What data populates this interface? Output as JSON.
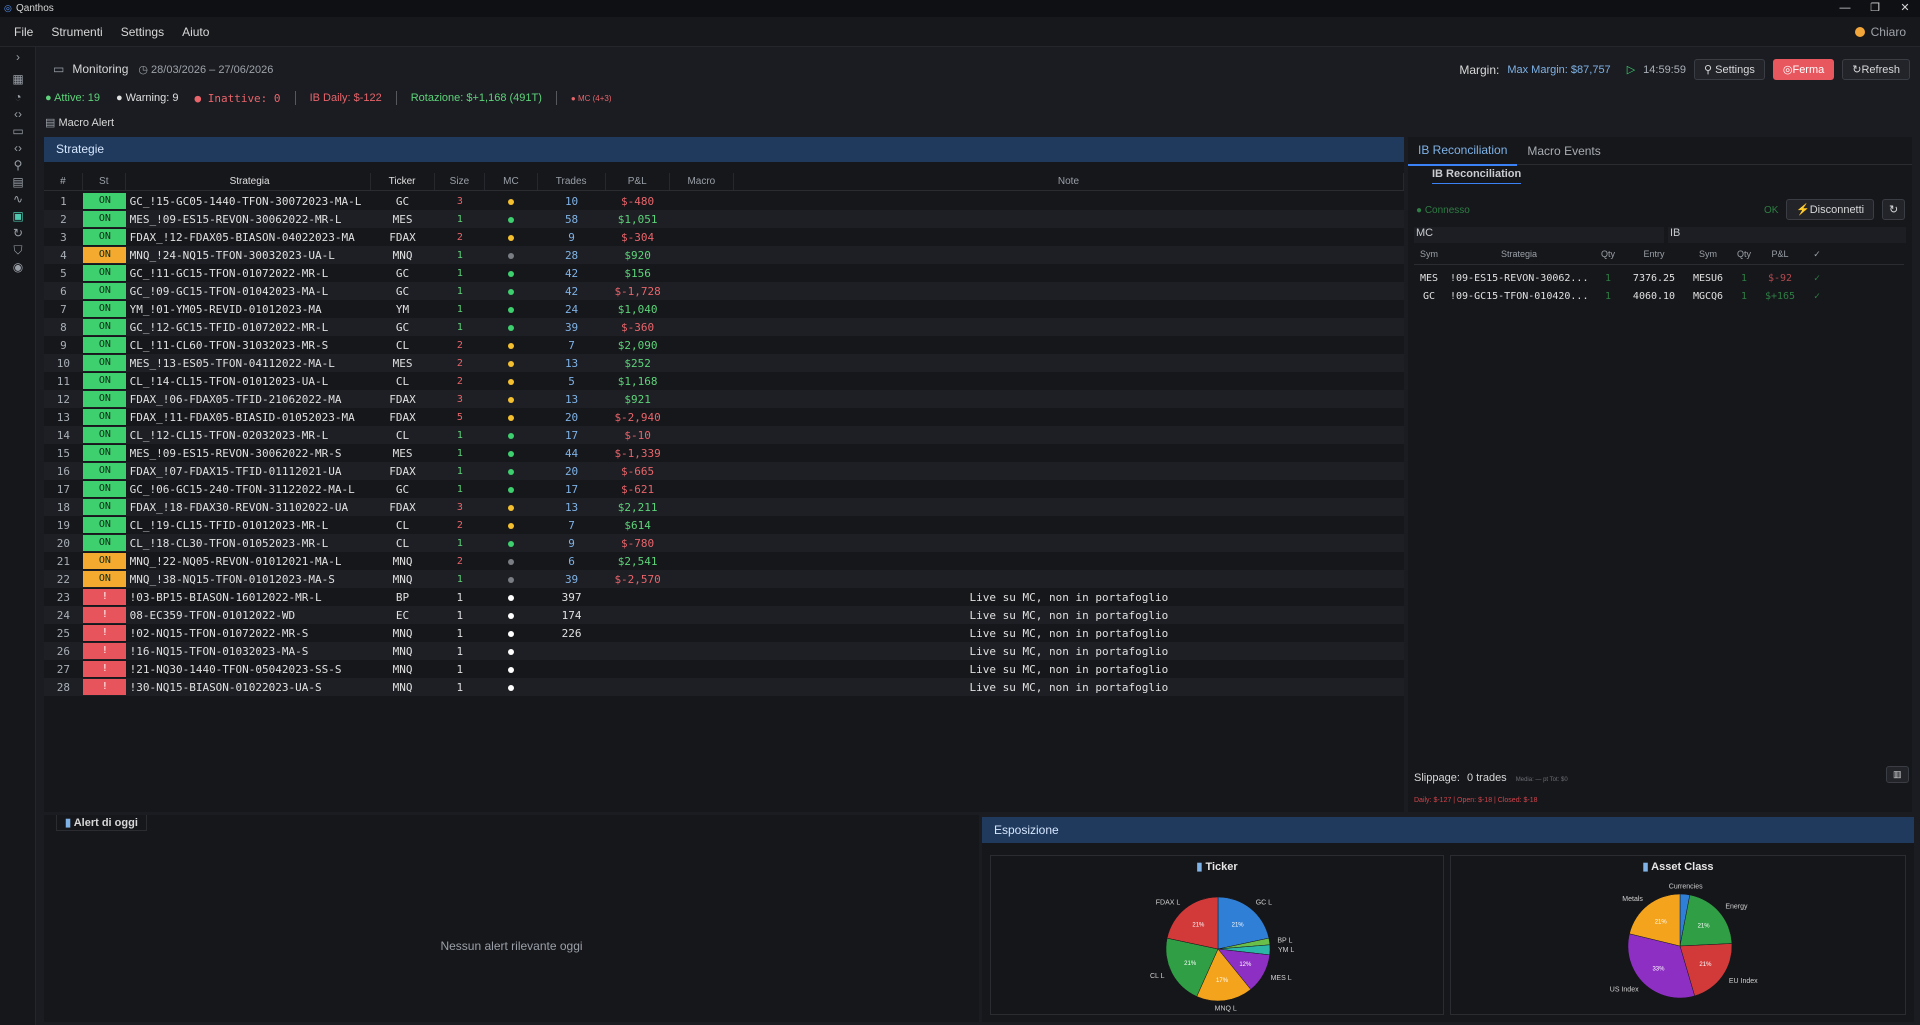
{
  "app": {
    "title": "Qanthos",
    "menu": [
      "File",
      "Strumenti",
      "Settings",
      "Aiuto"
    ],
    "theme": "Chiaro"
  },
  "toolbar": {
    "view": "Monitoring",
    "date_range": "28/03/2026 – 27/06/2026",
    "margin_label": "Margin:",
    "max_margin": "Max Margin: $87,757",
    "time": "14:59:59",
    "settings": "Settings",
    "stop": "Ferma",
    "refresh": "Refresh"
  },
  "status": {
    "active": "Attive: 19",
    "warning": "Warning: 9",
    "inactive": "Inattive: 0",
    "ib_daily": "IB Daily: $-122",
    "rotation": "Rotazione: $+1,168 (491T)",
    "mc": "MC (4+3)",
    "macro_alert": "Macro Alert"
  },
  "strategies": {
    "title": "Strategie",
    "columns": [
      "#",
      "St",
      "Strategia",
      "Ticker",
      "Size",
      "MC",
      "Trades",
      "P&L",
      "Macro",
      "Note"
    ],
    "rows": [
      {
        "n": "1",
        "st": "ON",
        "s": "on",
        "name": "GC_!15-GC05-1440-TFON-30072023-MA-L",
        "tk": "GC",
        "size": "3",
        "mc": "yellow",
        "trades": "10",
        "pl": "$-480"
      },
      {
        "n": "2",
        "st": "ON",
        "s": "on",
        "name": "MES_!09-ES15-REVON-30062022-MR-L",
        "tk": "MES",
        "size": "1",
        "mc": "green",
        "trades": "58",
        "pl": "$1,051"
      },
      {
        "n": "3",
        "st": "ON",
        "s": "on",
        "name": "FDAX_!12-FDAX05-BIASON-04022023-MA",
        "tk": "FDAX",
        "size": "2",
        "mc": "yellow",
        "trades": "9",
        "pl": "$-304"
      },
      {
        "n": "4",
        "st": "ON",
        "s": "warn",
        "name": "MNQ_!24-NQ15-TFON-30032023-UA-L",
        "tk": "MNQ",
        "size": "1",
        "mc": "grey",
        "trades": "28",
        "pl": "$920"
      },
      {
        "n": "5",
        "st": "ON",
        "s": "on",
        "name": "GC_!11-GC15-TFON-01072022-MR-L",
        "tk": "GC",
        "size": "1",
        "mc": "green",
        "trades": "42",
        "pl": "$156"
      },
      {
        "n": "6",
        "st": "ON",
        "s": "on",
        "name": "GC_!09-GC15-TFON-01042023-MA-L",
        "tk": "GC",
        "size": "1",
        "mc": "green",
        "trades": "42",
        "pl": "$-1,728"
      },
      {
        "n": "7",
        "st": "ON",
        "s": "on",
        "name": "YM_!01-YM05-REVID-01012023-MA",
        "tk": "YM",
        "size": "1",
        "mc": "green",
        "trades": "24",
        "pl": "$1,040"
      },
      {
        "n": "8",
        "st": "ON",
        "s": "on",
        "name": "GC_!12-GC15-TFID-01072022-MR-L",
        "tk": "GC",
        "size": "1",
        "mc": "green",
        "trades": "39",
        "pl": "$-360"
      },
      {
        "n": "9",
        "st": "ON",
        "s": "on",
        "name": "CL_!11-CL60-TFON-31032023-MR-S",
        "tk": "CL",
        "size": "2",
        "mc": "yellow",
        "trades": "7",
        "pl": "$2,090"
      },
      {
        "n": "10",
        "st": "ON",
        "s": "on",
        "name": "MES_!13-ES05-TFON-04112022-MA-L",
        "tk": "MES",
        "size": "2",
        "mc": "yellow",
        "trades": "13",
        "pl": "$252"
      },
      {
        "n": "11",
        "st": "ON",
        "s": "on",
        "name": "CL_!14-CL15-TFON-01012023-UA-L",
        "tk": "CL",
        "size": "2",
        "mc": "yellow",
        "trades": "5",
        "pl": "$1,168"
      },
      {
        "n": "12",
        "st": "ON",
        "s": "on",
        "name": "FDAX_!06-FDAX05-TFID-21062022-MA",
        "tk": "FDAX",
        "size": "3",
        "mc": "yellow",
        "trades": "13",
        "pl": "$921"
      },
      {
        "n": "13",
        "st": "ON",
        "s": "on",
        "name": "FDAX_!11-FDAX05-BIASID-01052023-MA",
        "tk": "FDAX",
        "size": "5",
        "mc": "yellow",
        "trades": "20",
        "pl": "$-2,940"
      },
      {
        "n": "14",
        "st": "ON",
        "s": "on",
        "name": "CL_!12-CL15-TFON-02032023-MR-L",
        "tk": "CL",
        "size": "1",
        "mc": "green",
        "trades": "17",
        "pl": "$-10"
      },
      {
        "n": "15",
        "st": "ON",
        "s": "on",
        "name": "MES_!09-ES15-REVON-30062022-MR-S",
        "tk": "MES",
        "size": "1",
        "mc": "green",
        "trades": "44",
        "pl": "$-1,339"
      },
      {
        "n": "16",
        "st": "ON",
        "s": "on",
        "name": "FDAX_!07-FDAX15-TFID-01112021-UA",
        "tk": "FDAX",
        "size": "1",
        "mc": "green",
        "trades": "20",
        "pl": "$-665"
      },
      {
        "n": "17",
        "st": "ON",
        "s": "on",
        "name": "GC_!06-GC15-240-TFON-31122022-MA-L",
        "tk": "GC",
        "size": "1",
        "mc": "green",
        "trades": "17",
        "pl": "$-621"
      },
      {
        "n": "18",
        "st": "ON",
        "s": "on",
        "name": "FDAX_!18-FDAX30-REVON-31102022-UA",
        "tk": "FDAX",
        "size": "3",
        "mc": "yellow",
        "trades": "13",
        "pl": "$2,211"
      },
      {
        "n": "19",
        "st": "ON",
        "s": "on",
        "name": "CL_!19-CL15-TFID-01012023-MR-L",
        "tk": "CL",
        "size": "2",
        "mc": "yellow",
        "trades": "7",
        "pl": "$614"
      },
      {
        "n": "20",
        "st": "ON",
        "s": "on",
        "name": "CL_!18-CL30-TFON-01052023-MR-L",
        "tk": "CL",
        "size": "1",
        "mc": "green",
        "trades": "9",
        "pl": "$-780"
      },
      {
        "n": "21",
        "st": "ON",
        "s": "warn",
        "name": "MNQ_!22-NQ05-REVON-01012021-MA-L",
        "tk": "MNQ",
        "size": "2",
        "mc": "grey",
        "trades": "6",
        "pl": "$2,541"
      },
      {
        "n": "22",
        "st": "ON",
        "s": "warn",
        "name": "MNQ_!38-NQ15-TFON-01012023-MA-S",
        "tk": "MNQ",
        "size": "1",
        "mc": "grey",
        "trades": "39",
        "pl": "$-2,570"
      },
      {
        "n": "23",
        "st": "!",
        "s": "err",
        "name": "!03-BP15-BIASON-16012022-MR-L",
        "tk": "BP",
        "size": "1",
        "mc": "white",
        "trades": "397",
        "pl": "",
        "note": "Live su MC, non in portafoglio"
      },
      {
        "n": "24",
        "st": "!",
        "s": "err",
        "name": "08-EC359-TFON-01012022-WD",
        "tk": "EC",
        "size": "1",
        "mc": "white",
        "trades": "174",
        "pl": "",
        "note": "Live su MC, non in portafoglio"
      },
      {
        "n": "25",
        "st": "!",
        "s": "err",
        "name": "!02-NQ15-TFON-01072022-MR-S",
        "tk": "MNQ",
        "size": "1",
        "mc": "white",
        "trades": "226",
        "pl": "",
        "note": "Live su MC, non in portafoglio"
      },
      {
        "n": "26",
        "st": "!",
        "s": "err",
        "name": "!16-NQ15-TFON-01032023-MA-S",
        "tk": "MNQ",
        "size": "1",
        "mc": "white",
        "trades": "",
        "pl": "",
        "note": "Live su MC, non in portafoglio"
      },
      {
        "n": "27",
        "st": "!",
        "s": "err",
        "name": "!21-NQ30-1440-TFON-05042023-SS-S",
        "tk": "MNQ",
        "size": "1",
        "mc": "white",
        "trades": "",
        "pl": "",
        "note": "Live su MC, non in portafoglio"
      },
      {
        "n": "28",
        "st": "!",
        "s": "err",
        "name": "!30-NQ15-BIASON-01022023-UA-S",
        "tk": "MNQ",
        "size": "1",
        "mc": "white",
        "trades": "",
        "pl": "",
        "note": "Live su MC, non in portafoglio"
      }
    ]
  },
  "ib": {
    "tabs": [
      "IB Reconciliation",
      "Macro Events"
    ],
    "subtitle": "IB Reconciliation",
    "connected": "● Connesso",
    "ok": "OK",
    "disconnect": "Disconnetti",
    "mc_label": "MC",
    "ib_label": "IB",
    "columns": [
      "Sym",
      "Strategia",
      "Qty",
      "Entry",
      "Sym",
      "Qty",
      "P&L",
      "✓"
    ],
    "rows": [
      {
        "sym": "MES",
        "strat": "!09-ES15-REVON-30062...",
        "qty": "1",
        "entry": "7376.25",
        "isym": "MESU6",
        "iqty": "1",
        "pl": "$-92",
        "chk": "✓"
      },
      {
        "sym": "GC",
        "strat": "!09-GC15-TFON-010420...",
        "qty": "1",
        "entry": "4060.10",
        "isym": "MGCQ6",
        "iqty": "1",
        "pl": "$+165",
        "chk": "✓"
      }
    ],
    "slippage_label": "Slippage:",
    "slippage_val": "0 trades",
    "slippage_detail": "Media: — pt   Tot: $0",
    "daily": "Daily: $-127 | Open: $-18 | Closed: $-18"
  },
  "alerts": {
    "title": "Alert di oggi",
    "empty": "Nessun alert rilevante oggi"
  },
  "exposure": {
    "title": "Esposizione"
  },
  "chart_data": [
    {
      "type": "pie",
      "title": "Ticker",
      "categories": [
        "GC L",
        "BP L",
        "YM L",
        "MES L",
        "MNQ L",
        "CL L",
        "FDAX L"
      ],
      "values": [
        21,
        2,
        3,
        12,
        17,
        21,
        21
      ],
      "labels": [
        "21%",
        "",
        "",
        "12%",
        "17%",
        "21%",
        "21%"
      ],
      "colors": [
        "#2f7fd6",
        "#6abf4b",
        "#2bb6a8",
        "#8e2fc4",
        "#f4a31c",
        "#2f9e44",
        "#d23a3a"
      ]
    },
    {
      "type": "pie",
      "title": "Asset Class",
      "categories": [
        "Currencies",
        "Energy",
        "EU Index",
        "US Index",
        "Metals"
      ],
      "values": [
        3,
        21,
        21,
        33,
        21
      ],
      "labels": [
        "",
        "21%",
        "21%",
        "33%",
        "21%"
      ],
      "colors": [
        "#2f7fd6",
        "#2f9e44",
        "#d23a3a",
        "#8e2fc4",
        "#f4a31c"
      ]
    }
  ]
}
